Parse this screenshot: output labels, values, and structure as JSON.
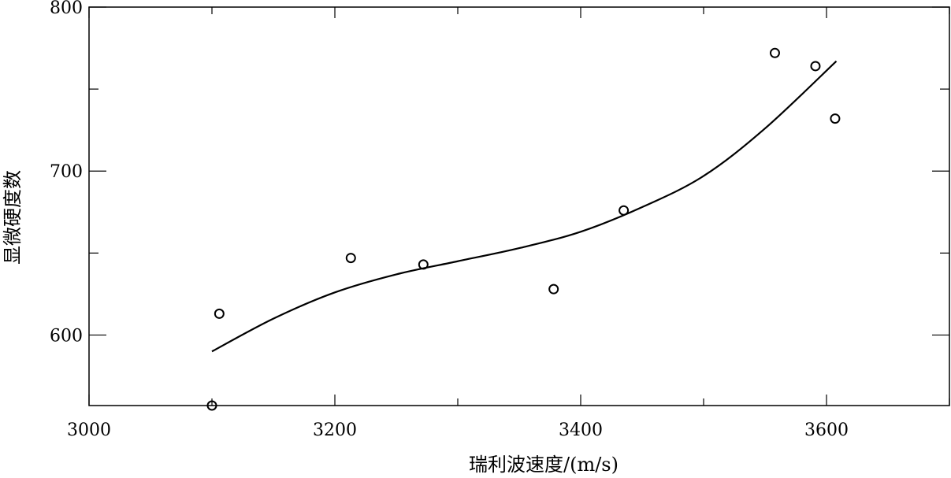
{
  "chart_data": {
    "type": "scatter",
    "xlabel": "瑞利波速度/(m/s)",
    "ylabel": "显微硬度数",
    "xlim": [
      3000,
      3700
    ],
    "ylim": [
      557,
      800
    ],
    "x_ticks": [
      3000,
      3200,
      3400,
      3600
    ],
    "y_ticks": [
      600,
      700,
      800
    ],
    "grid": false,
    "points": [
      {
        "x": 3100,
        "y": 557
      },
      {
        "x": 3106,
        "y": 613
      },
      {
        "x": 3213,
        "y": 647
      },
      {
        "x": 3272,
        "y": 643
      },
      {
        "x": 3378,
        "y": 628
      },
      {
        "x": 3435,
        "y": 676
      },
      {
        "x": 3558,
        "y": 772
      },
      {
        "x": 3591,
        "y": 764
      },
      {
        "x": 3607,
        "y": 732
      }
    ],
    "fit_curve": [
      {
        "x": 3100,
        "y": 590
      },
      {
        "x": 3150,
        "y": 610
      },
      {
        "x": 3200,
        "y": 626
      },
      {
        "x": 3250,
        "y": 637
      },
      {
        "x": 3300,
        "y": 645
      },
      {
        "x": 3350,
        "y": 653
      },
      {
        "x": 3400,
        "y": 663
      },
      {
        "x": 3450,
        "y": 678
      },
      {
        "x": 3500,
        "y": 697
      },
      {
        "x": 3550,
        "y": 726
      },
      {
        "x": 3608,
        "y": 767
      }
    ]
  }
}
